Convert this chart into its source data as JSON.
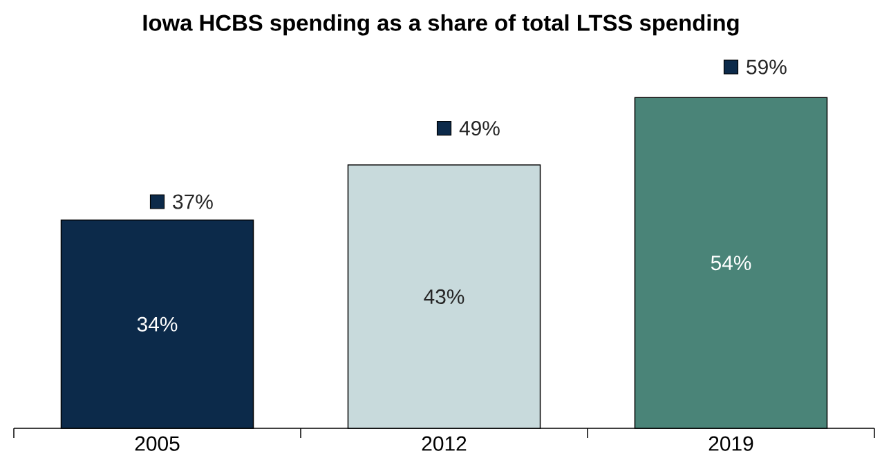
{
  "chart_data": {
    "type": "bar",
    "title": "Iowa HCBS spending as a share of total LTSS spending",
    "categories": [
      "2005",
      "2012",
      "2019"
    ],
    "series": [
      {
        "colors": [
          "#0c2a4a",
          "#c8dadc",
          "#4a8478"
        ],
        "values": [
          34,
          43,
          54
        ],
        "value_labels": [
          "34%",
          "43%",
          "54%"
        ]
      },
      {
        "type": "scatter",
        "marker": "square",
        "color": "#0c2a4a",
        "values": [
          37,
          49,
          59
        ],
        "value_labels": [
          "37%",
          "49%",
          "59%"
        ]
      }
    ]
  }
}
